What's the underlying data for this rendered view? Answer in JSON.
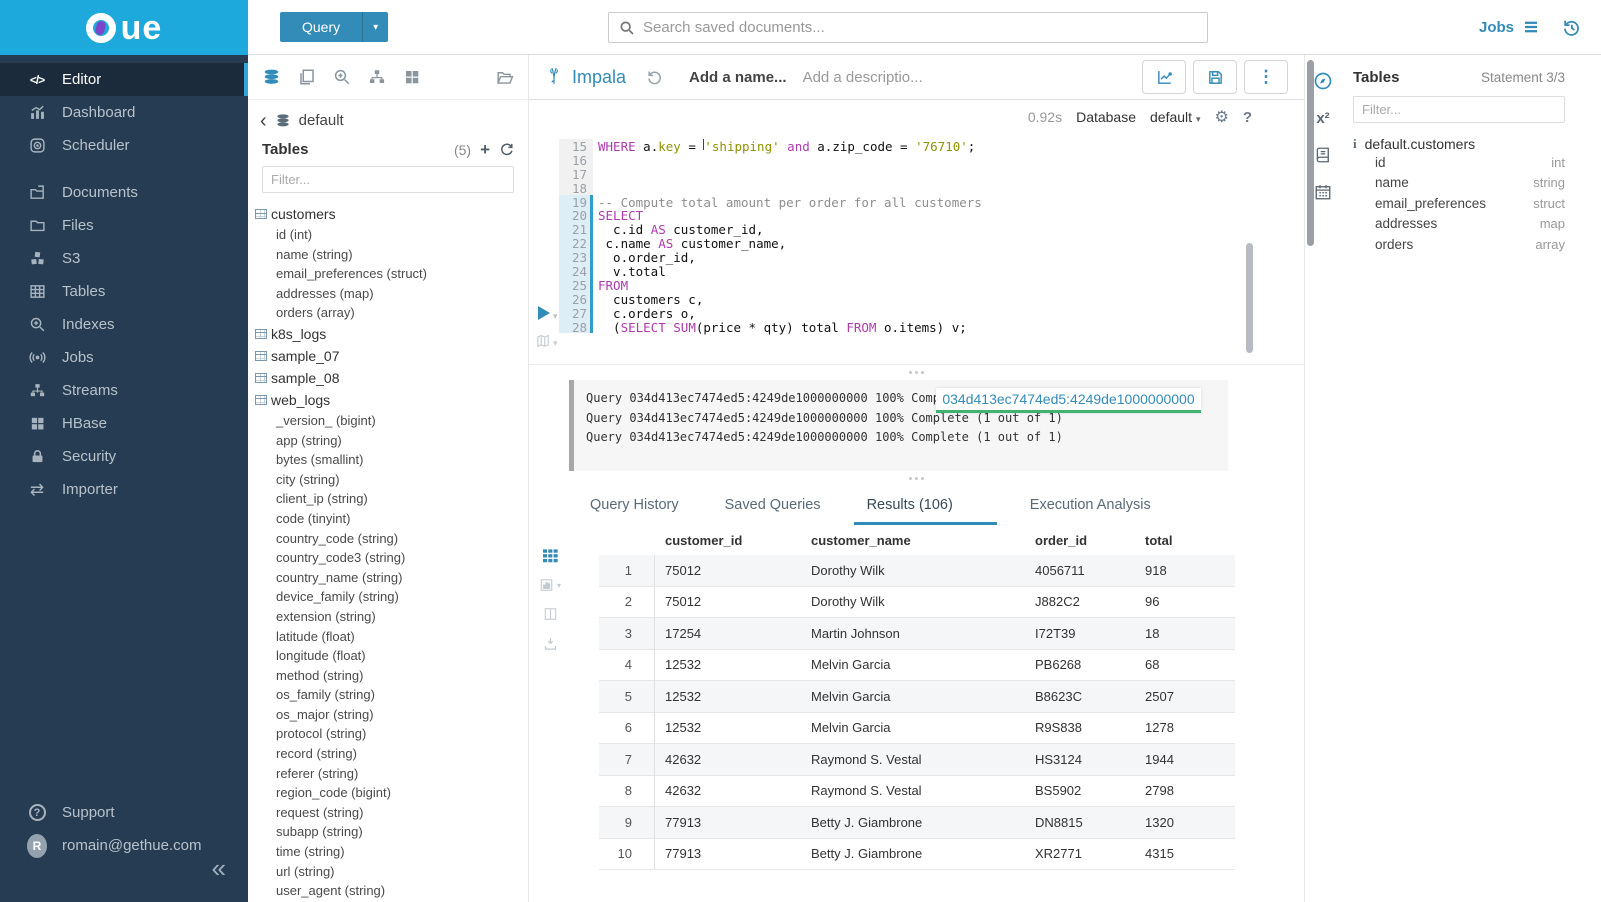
{
  "colors": {
    "accent": "#338bb8",
    "logo_bar": "#1da9dc",
    "sidebar": "#263c52",
    "overlay_underline": "#3fb36f"
  },
  "logo": {
    "text": "ue"
  },
  "topbar": {
    "query_label": "Query",
    "search_placeholder": "Search saved documents...",
    "jobs_label": "Jobs"
  },
  "sidebar": {
    "items": [
      "Editor",
      "Dashboard",
      "Scheduler",
      "Documents",
      "Files",
      "S3",
      "Tables",
      "Indexes",
      "Jobs",
      "Streams",
      "HBase",
      "Security",
      "Importer"
    ],
    "support": "Support",
    "user_email": "romain@gethue.com",
    "avatar_initial": "R",
    "collapse_glyph": "«"
  },
  "left_assist": {
    "breadcrumb": "default",
    "tables_label": "Tables",
    "count": "(5)",
    "filter_placeholder": "Filter...",
    "tables": [
      {
        "name": "customers",
        "columns": [
          "id (int)",
          "name (string)",
          "email_preferences (struct)",
          "addresses (map)",
          "orders (array)"
        ]
      },
      {
        "name": "k8s_logs",
        "columns": []
      },
      {
        "name": "sample_07",
        "columns": []
      },
      {
        "name": "sample_08",
        "columns": []
      },
      {
        "name": "web_logs",
        "columns": [
          "_version_ (bigint)",
          "app (string)",
          "bytes (smallint)",
          "city (string)",
          "client_ip (string)",
          "code (tinyint)",
          "country_code (string)",
          "country_code3 (string)",
          "country_name (string)",
          "device_family (string)",
          "extension (string)",
          "latitude (float)",
          "longitude (float)",
          "method (string)",
          "os_family (string)",
          "os_major (string)",
          "protocol (string)",
          "record (string)",
          "referer (string)",
          "region_code (bigint)",
          "request (string)",
          "subapp (string)",
          "time (string)",
          "url (string)",
          "user_agent (string)"
        ]
      }
    ]
  },
  "editor": {
    "engine": "Impala",
    "name_placeholder": "Add a name...",
    "description_placeholder": "Add a descriptio...",
    "exec_time": "0.92s",
    "database_label": "Database",
    "database_value": "default",
    "lines": [
      {
        "n": 15,
        "hl": false,
        "seg": [
          {
            "t": "k",
            "v": "WHERE"
          },
          {
            "t": "p",
            "v": " a."
          },
          {
            "t": "s",
            "v": "key"
          },
          {
            "t": "p",
            "v": " = "
          },
          {
            "t": "cur",
            "v": ""
          },
          {
            "t": "s",
            "v": "'shipping'"
          },
          {
            "t": "p",
            "v": " "
          },
          {
            "t": "k",
            "v": "and"
          },
          {
            "t": "p",
            "v": " a.zip_code = "
          },
          {
            "t": "s",
            "v": "'76710'"
          },
          {
            "t": "p",
            "v": ";"
          }
        ]
      },
      {
        "n": 16,
        "hl": false,
        "seg": []
      },
      {
        "n": 17,
        "hl": false,
        "seg": []
      },
      {
        "n": 18,
        "hl": false,
        "seg": []
      },
      {
        "n": 19,
        "hl": true,
        "seg": [
          {
            "t": "c",
            "v": "-- Compute total amount per order for all customers"
          }
        ]
      },
      {
        "n": 20,
        "hl": true,
        "seg": [
          {
            "t": "k",
            "v": "SELECT"
          }
        ]
      },
      {
        "n": 21,
        "hl": true,
        "seg": [
          {
            "t": "p",
            "v": "  c.id "
          },
          {
            "t": "k",
            "v": "AS"
          },
          {
            "t": "p",
            "v": " customer_id,"
          }
        ]
      },
      {
        "n": 22,
        "hl": true,
        "seg": [
          {
            "t": "p",
            "v": " c.name "
          },
          {
            "t": "k",
            "v": "AS"
          },
          {
            "t": "p",
            "v": " customer_name,"
          }
        ]
      },
      {
        "n": 23,
        "hl": true,
        "seg": [
          {
            "t": "p",
            "v": "  o.order_id,"
          }
        ]
      },
      {
        "n": 24,
        "hl": true,
        "seg": [
          {
            "t": "p",
            "v": "  v.total"
          }
        ]
      },
      {
        "n": 25,
        "hl": true,
        "seg": [
          {
            "t": "k",
            "v": "FROM"
          }
        ]
      },
      {
        "n": 26,
        "hl": true,
        "seg": [
          {
            "t": "p",
            "v": "  customers c,"
          }
        ]
      },
      {
        "n": 27,
        "hl": true,
        "seg": [
          {
            "t": "p",
            "v": "  c.orders o,"
          }
        ]
      },
      {
        "n": 28,
        "hl": true,
        "seg": [
          {
            "t": "p",
            "v": "  ("
          },
          {
            "t": "k",
            "v": "SELECT"
          },
          {
            "t": "p",
            "v": " "
          },
          {
            "t": "k",
            "v": "SUM"
          },
          {
            "t": "p",
            "v": "(price * qty) total "
          },
          {
            "t": "k",
            "v": "FROM"
          },
          {
            "t": "p",
            "v": " o.items) v;"
          }
        ]
      }
    ]
  },
  "logs": {
    "lines": [
      "Query 034d413ec7474ed5:4249de1000000000 100% Complete (1 out of 1)",
      "Query 034d413ec7474ed5:4249de1000000000 100% Complete (1 out of 1)",
      "Query 034d413ec7474ed5:4249de1000000000 100% Complete (1 out of 1)"
    ],
    "overlay_id": "034d413ec7474ed5:4249de1000000000"
  },
  "tabs": {
    "items": [
      "Query History",
      "Saved Queries",
      "Results (106)",
      "Execution Analysis"
    ],
    "active": 2
  },
  "results": {
    "columns": [
      "customer_id",
      "customer_name",
      "order_id",
      "total"
    ],
    "rows": [
      [
        "1",
        "75012",
        "Dorothy Wilk",
        "4056711",
        "918"
      ],
      [
        "2",
        "75012",
        "Dorothy Wilk",
        "J882C2",
        "96"
      ],
      [
        "3",
        "17254",
        "Martin Johnson",
        "I72T39",
        "18"
      ],
      [
        "4",
        "12532",
        "Melvin Garcia",
        "PB6268",
        "68"
      ],
      [
        "5",
        "12532",
        "Melvin Garcia",
        "B8623C",
        "2507"
      ],
      [
        "6",
        "12532",
        "Melvin Garcia",
        "R9S838",
        "1278"
      ],
      [
        "7",
        "42632",
        "Raymond S. Vestal",
        "HS3124",
        "1944"
      ],
      [
        "8",
        "42632",
        "Raymond S. Vestal",
        "BS5902",
        "2798"
      ],
      [
        "9",
        "77913",
        "Betty J. Giambrone",
        "DN8815",
        "1320"
      ],
      [
        "10",
        "77913",
        "Betty J. Giambrone",
        "XR2771",
        "4315"
      ]
    ]
  },
  "right_assist": {
    "title": "Tables",
    "statement": "Statement 3/3",
    "filter_placeholder": "Filter...",
    "table": "default.customers",
    "columns": [
      {
        "name": "id",
        "type": "int"
      },
      {
        "name": "name",
        "type": "string"
      },
      {
        "name": "email_preferences",
        "type": "struct"
      },
      {
        "name": "addresses",
        "type": "map"
      },
      {
        "name": "orders",
        "type": "array"
      }
    ]
  }
}
